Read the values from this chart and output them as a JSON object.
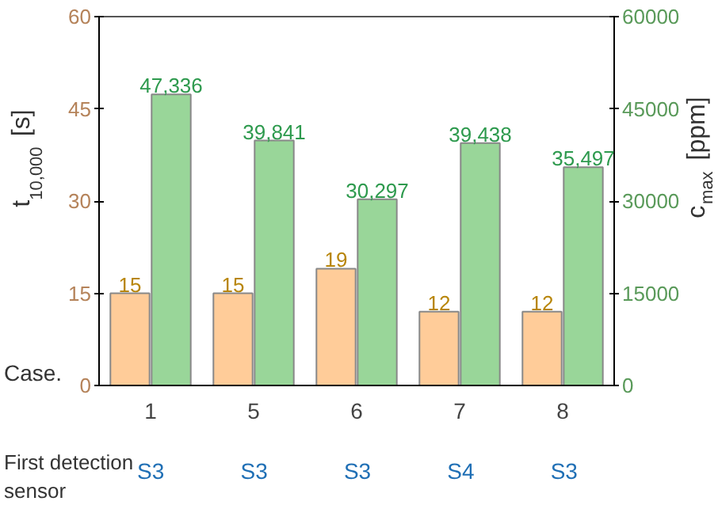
{
  "chart_data": {
    "type": "bar",
    "xlabel": "Case.",
    "ylabel": "t$_{10,000}$ [s]",
    "y2label": "c$_{max}$ [ppm]",
    "categories": [
      "1",
      "5",
      "6",
      "7",
      "8"
    ],
    "series": [
      {
        "color": "#ffcc99",
        "values": [
          15,
          15,
          19,
          12,
          12
        ]
      },
      {
        "color": "#99d699",
        "axis": "y2",
        "values": [
          47336,
          39841,
          30297,
          39438,
          35497
        ],
        "value_labels": [
          "47,336",
          "39,841",
          "30,297",
          "39,438",
          "35,497"
        ]
      }
    ],
    "ylim": [
      0,
      60
    ],
    "yticks": [
      0,
      15,
      30,
      45,
      60
    ],
    "y2lim": [
      0,
      60000
    ],
    "y2ticks": [
      0,
      15000,
      30000,
      45000,
      60000
    ],
    "data_labels": true,
    "grid": false,
    "annotations": [
      "First detection sensor",
      "S3",
      "S3",
      "S3",
      "S4",
      "S3"
    ]
  }
}
